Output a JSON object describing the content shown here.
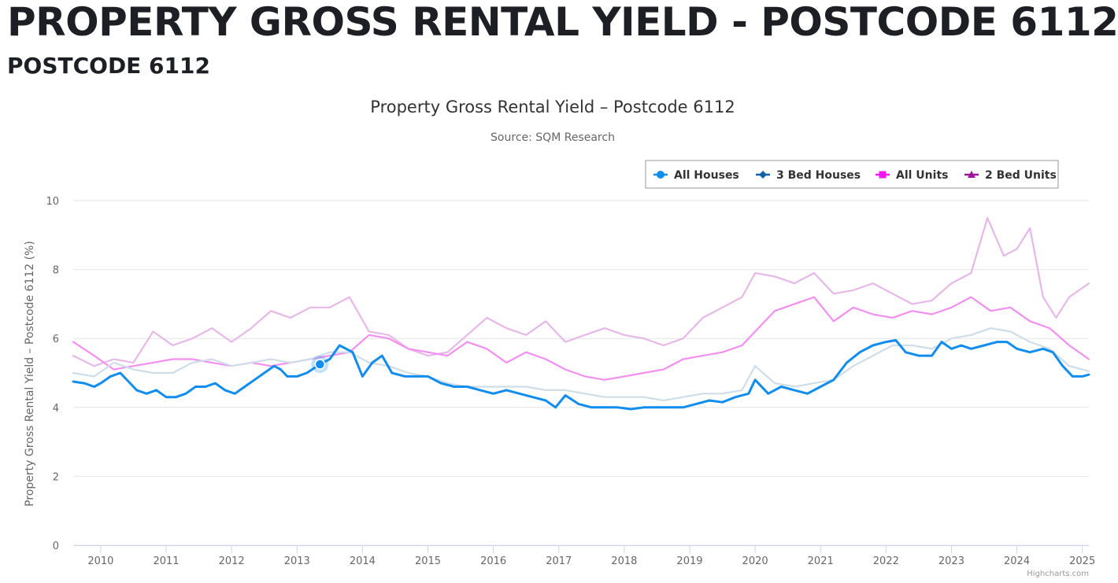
{
  "page": {
    "heading": "PROPERTY GROSS RENTAL YIELD - POSTCODE 6112",
    "subheading": "POSTCODE 6112"
  },
  "credits": "Highcharts.com",
  "chart_data": {
    "type": "line",
    "title": "Property Gross Rental Yield – Postcode 6112",
    "subtitle": "Source: SQM Research",
    "xlabel": "",
    "ylabel": "Property Gross Rental Yield – Postcode 6112 (%)",
    "ylim": [
      0,
      10
    ],
    "yticks": [
      0,
      2,
      4,
      6,
      8,
      10
    ],
    "xlim": [
      2009.58,
      2025.1
    ],
    "xticks": [
      "2010",
      "2011",
      "2012",
      "2013",
      "2014",
      "2015",
      "2016",
      "2017",
      "2018",
      "2019",
      "2020",
      "2021",
      "2022",
      "2023",
      "2024",
      "2025"
    ],
    "grid": true,
    "legend_position": "top-right",
    "highlight_point": {
      "x": 2013.35,
      "y": 5.25,
      "series": "All Houses"
    },
    "series": [
      {
        "name": "All Houses",
        "color": "#118ded",
        "marker": "circle",
        "x": [
          2009.58,
          2009.75,
          2009.9,
          2010.0,
          2010.15,
          2010.3,
          2010.45,
          2010.55,
          2010.7,
          2010.85,
          2011.0,
          2011.15,
          2011.3,
          2011.45,
          2011.6,
          2011.75,
          2011.9,
          2012.05,
          2012.2,
          2012.35,
          2012.5,
          2012.65,
          2012.75,
          2012.85,
          2013.0,
          2013.15,
          2013.35,
          2013.5,
          2013.65,
          2013.85,
          2014.0,
          2014.15,
          2014.3,
          2014.45,
          2014.65,
          2014.85,
          2015.0,
          2015.2,
          2015.4,
          2015.6,
          2015.8,
          2016.0,
          2016.2,
          2016.4,
          2016.6,
          2016.8,
          2016.95,
          2017.1,
          2017.3,
          2017.5,
          2017.7,
          2017.9,
          2018.1,
          2018.3,
          2018.5,
          2018.7,
          2018.9,
          2019.1,
          2019.3,
          2019.5,
          2019.7,
          2019.9,
          2020.0,
          2020.2,
          2020.4,
          2020.6,
          2020.8,
          2021.0,
          2021.2,
          2021.4,
          2021.6,
          2021.8,
          2022.0,
          2022.15,
          2022.3,
          2022.5,
          2022.7,
          2022.85,
          2023.0,
          2023.15,
          2023.3,
          2023.5,
          2023.7,
          2023.85,
          2024.0,
          2024.2,
          2024.4,
          2024.55,
          2024.7,
          2024.85,
          2025.0,
          2025.1
        ],
        "values": [
          4.75,
          4.7,
          4.6,
          4.7,
          4.9,
          5.0,
          4.7,
          4.5,
          4.4,
          4.5,
          4.3,
          4.3,
          4.4,
          4.6,
          4.6,
          4.7,
          4.5,
          4.4,
          4.6,
          4.8,
          5.0,
          5.2,
          5.1,
          4.9,
          4.9,
          5.0,
          5.25,
          5.4,
          5.8,
          5.6,
          4.9,
          5.3,
          5.5,
          5.0,
          4.9,
          4.9,
          4.9,
          4.7,
          4.6,
          4.6,
          4.5,
          4.4,
          4.5,
          4.4,
          4.3,
          4.2,
          4.0,
          4.35,
          4.1,
          4.0,
          4.0,
          4.0,
          3.95,
          4.0,
          4.0,
          4.0,
          4.0,
          4.1,
          4.2,
          4.15,
          4.3,
          4.4,
          4.8,
          4.4,
          4.6,
          4.5,
          4.4,
          4.6,
          4.8,
          5.3,
          5.6,
          5.8,
          5.9,
          5.95,
          5.6,
          5.5,
          5.5,
          5.9,
          5.7,
          5.8,
          5.7,
          5.8,
          5.9,
          5.9,
          5.7,
          5.6,
          5.7,
          5.6,
          5.2,
          4.9,
          4.9,
          4.95
        ]
      },
      {
        "name": "3 Bed Houses",
        "color": "#cfdde8",
        "marker": "diamond",
        "x": [
          2009.58,
          2009.9,
          2010.2,
          2010.5,
          2010.8,
          2011.1,
          2011.4,
          2011.7,
          2012.0,
          2012.3,
          2012.6,
          2012.9,
          2013.2,
          2013.5,
          2013.8,
          2014.1,
          2014.4,
          2014.7,
          2015.0,
          2015.3,
          2015.6,
          2015.9,
          2016.2,
          2016.5,
          2016.8,
          2017.1,
          2017.4,
          2017.7,
          2018.0,
          2018.3,
          2018.6,
          2018.9,
          2019.2,
          2019.5,
          2019.8,
          2020.0,
          2020.3,
          2020.6,
          2020.9,
          2021.2,
          2021.5,
          2021.8,
          2022.1,
          2022.4,
          2022.7,
          2023.0,
          2023.3,
          2023.6,
          2023.9,
          2024.2,
          2024.5,
          2024.8,
          2025.1
        ],
        "values": [
          5.0,
          4.9,
          5.3,
          5.1,
          5.0,
          5.0,
          5.3,
          5.4,
          5.2,
          5.3,
          5.4,
          5.3,
          5.4,
          5.6,
          5.6,
          5.3,
          5.2,
          5.0,
          4.9,
          4.7,
          4.6,
          4.6,
          4.6,
          4.6,
          4.5,
          4.5,
          4.4,
          4.3,
          4.3,
          4.3,
          4.2,
          4.3,
          4.4,
          4.4,
          4.5,
          5.2,
          4.7,
          4.6,
          4.7,
          4.8,
          5.2,
          5.5,
          5.8,
          5.8,
          5.7,
          6.0,
          6.1,
          6.3,
          6.2,
          5.9,
          5.7,
          5.2,
          5.05
        ]
      },
      {
        "name": "All Units",
        "color": "#f28ff0",
        "marker": "square",
        "x": [
          2009.58,
          2009.9,
          2010.2,
          2010.5,
          2010.8,
          2011.1,
          2011.4,
          2011.7,
          2012.0,
          2012.3,
          2012.6,
          2012.9,
          2013.2,
          2013.5,
          2013.8,
          2014.1,
          2014.4,
          2014.7,
          2015.0,
          2015.3,
          2015.6,
          2015.9,
          2016.2,
          2016.5,
          2016.8,
          2017.1,
          2017.4,
          2017.7,
          2018.0,
          2018.3,
          2018.6,
          2018.9,
          2019.2,
          2019.5,
          2019.8,
          2020.0,
          2020.3,
          2020.6,
          2020.9,
          2021.2,
          2021.5,
          2021.8,
          2022.1,
          2022.4,
          2022.7,
          2023.0,
          2023.3,
          2023.6,
          2023.9,
          2024.2,
          2024.5,
          2024.8,
          2025.1
        ],
        "values": [
          5.9,
          5.5,
          5.1,
          5.2,
          5.3,
          5.4,
          5.4,
          5.3,
          5.2,
          5.3,
          5.2,
          5.3,
          5.4,
          5.5,
          5.6,
          6.1,
          6.0,
          5.7,
          5.6,
          5.5,
          5.9,
          5.7,
          5.3,
          5.6,
          5.4,
          5.1,
          4.9,
          4.8,
          4.9,
          5.0,
          5.1,
          5.4,
          5.5,
          5.6,
          5.8,
          6.2,
          6.8,
          7.0,
          7.2,
          6.5,
          6.9,
          6.7,
          6.6,
          6.8,
          6.7,
          6.9,
          7.2,
          6.8,
          6.9,
          6.5,
          6.3,
          5.8,
          5.4
        ]
      },
      {
        "name": "2 Bed Units",
        "color": "#e6b8e8",
        "marker": "triangle",
        "x": [
          2009.58,
          2009.9,
          2010.2,
          2010.5,
          2010.8,
          2011.1,
          2011.4,
          2011.7,
          2012.0,
          2012.3,
          2012.6,
          2012.9,
          2013.2,
          2013.5,
          2013.8,
          2014.1,
          2014.4,
          2014.7,
          2015.0,
          2015.3,
          2015.6,
          2015.9,
          2016.2,
          2016.5,
          2016.8,
          2017.1,
          2017.4,
          2017.7,
          2018.0,
          2018.3,
          2018.6,
          2018.9,
          2019.2,
          2019.5,
          2019.8,
          2020.0,
          2020.3,
          2020.6,
          2020.9,
          2021.2,
          2021.5,
          2021.8,
          2022.1,
          2022.4,
          2022.7,
          2023.0,
          2023.3,
          2023.55,
          2023.8,
          2024.0,
          2024.2,
          2024.4,
          2024.6,
          2024.8,
          2025.1
        ],
        "values": [
          5.5,
          5.2,
          5.4,
          5.3,
          6.2,
          5.8,
          6.0,
          6.3,
          5.9,
          6.3,
          6.8,
          6.6,
          6.9,
          6.9,
          7.2,
          6.2,
          6.1,
          5.7,
          5.5,
          5.6,
          6.1,
          6.6,
          6.3,
          6.1,
          6.5,
          5.9,
          6.1,
          6.3,
          6.1,
          6.0,
          5.8,
          6.0,
          6.6,
          6.9,
          7.2,
          7.9,
          7.8,
          7.6,
          7.9,
          7.3,
          7.4,
          7.6,
          7.3,
          7.0,
          7.1,
          7.6,
          7.9,
          9.5,
          8.4,
          8.6,
          9.2,
          7.2,
          6.6,
          7.2,
          7.6
        ]
      }
    ]
  }
}
